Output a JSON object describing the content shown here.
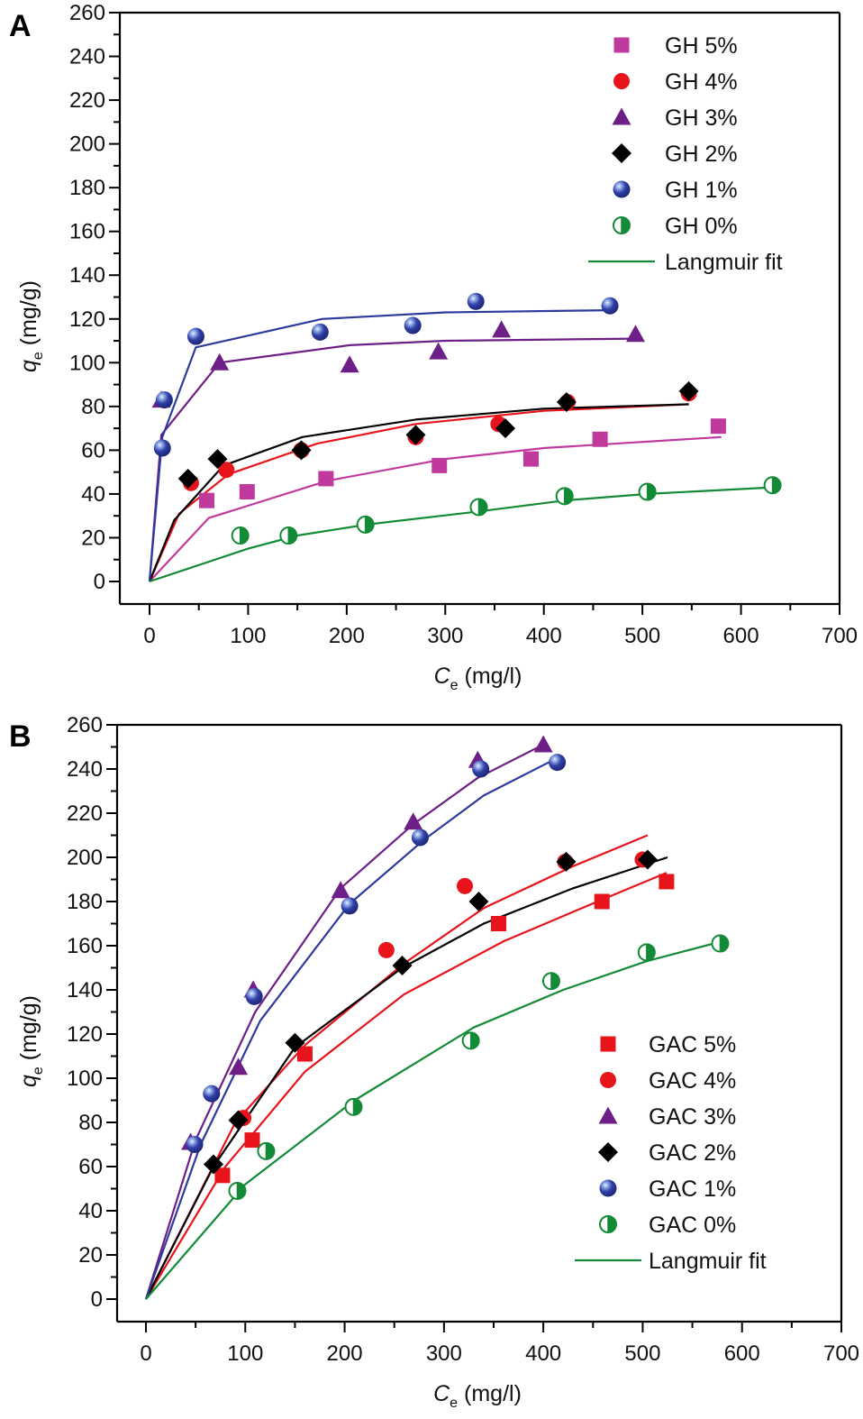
{
  "chart_data": [
    {
      "type": "scatter",
      "panel_label": "A",
      "title": "",
      "xlabel": "C",
      "xlabel_sub": "e",
      "xlabel_unit": " (mg/l)",
      "ylabel": "q",
      "ylabel_sub": "e",
      "ylabel_unit": " (mg/g)",
      "xlim": [
        -30,
        700
      ],
      "ylim": [
        -10,
        260
      ],
      "xticks": [
        0,
        100,
        200,
        300,
        400,
        500,
        600,
        700
      ],
      "yticks": [
        0,
        20,
        40,
        60,
        80,
        100,
        120,
        140,
        160,
        180,
        200,
        220,
        240,
        260
      ],
      "grid": false,
      "legend_position": "top-right",
      "fit_label": "Langmuir fit",
      "series": [
        {
          "name": "GH 5%",
          "marker": "square",
          "color": "#c03a9e",
          "x": [
            58,
            99,
            179,
            294,
            387,
            457,
            577
          ],
          "y": [
            37,
            41,
            47,
            53,
            56,
            65,
            71
          ],
          "fit_x": [
            0,
            60,
            180,
            300,
            400,
            580
          ],
          "fit_y": [
            0,
            29,
            46,
            56,
            61,
            66
          ]
        },
        {
          "name": "GH 4%",
          "marker": "circle",
          "color": "#e8141b",
          "x": [
            42,
            78,
            154,
            270,
            354,
            424,
            547
          ],
          "y": [
            45,
            51,
            60,
            66,
            72,
            82,
            86
          ],
          "fit_x": [
            0,
            30,
            80,
            170,
            270,
            400,
            547
          ],
          "fit_y": [
            0,
            31,
            49,
            63,
            72,
            78,
            81
          ]
        },
        {
          "name": "GH 3%",
          "marker": "triangle",
          "color": "#6e1f87",
          "x": [
            12,
            71,
            203,
            293,
            357,
            493
          ],
          "y": [
            83,
            100,
            99,
            105,
            115,
            113
          ],
          "fit_x": [
            0,
            12,
            71,
            203,
            300,
            493
          ],
          "fit_y": [
            0,
            67,
            100,
            108,
            110,
            111
          ]
        },
        {
          "name": "GH 2%",
          "marker": "diamond",
          "color": "#000000",
          "x": [
            39,
            69,
            154,
            270,
            361,
            423,
            547
          ],
          "y": [
            47,
            56,
            60,
            67,
            70,
            82,
            87
          ],
          "fit_x": [
            0,
            25,
            75,
            155,
            270,
            400,
            547
          ],
          "fit_y": [
            0,
            28,
            53,
            66,
            74,
            79,
            81
          ]
        },
        {
          "name": "GH 1%",
          "marker": "sphere",
          "color": "#2e3b9c",
          "x": [
            13,
            15,
            47,
            173,
            267,
            331,
            467
          ],
          "y": [
            61,
            83,
            112,
            114,
            117,
            128,
            126
          ],
          "fit_x": [
            0,
            13,
            47,
            175,
            300,
            467
          ],
          "fit_y": [
            0,
            66,
            107,
            120,
            123,
            124
          ]
        },
        {
          "name": "GH 0%",
          "marker": "half-circle",
          "color": "#138a36",
          "x": [
            92,
            141,
            219,
            334,
            421,
            505,
            632
          ],
          "y": [
            21,
            21,
            26,
            34,
            39,
            41,
            44
          ],
          "fit_x": [
            0,
            100,
            150,
            220,
            334,
            421,
            505,
            632
          ],
          "fit_y": [
            0,
            15,
            21,
            26,
            32,
            37,
            40,
            43
          ]
        }
      ]
    },
    {
      "type": "scatter",
      "panel_label": "B",
      "title": "",
      "xlabel": "C",
      "xlabel_sub": "e",
      "xlabel_unit": " (mg/l)",
      "ylabel": "q",
      "ylabel_sub": "e",
      "ylabel_unit": " (mg/g)",
      "xlim": [
        -30,
        700
      ],
      "ylim": [
        -10,
        260
      ],
      "xticks": [
        0,
        100,
        200,
        300,
        400,
        500,
        600,
        700
      ],
      "yticks": [
        0,
        20,
        40,
        60,
        80,
        100,
        120,
        140,
        160,
        180,
        200,
        220,
        240,
        260
      ],
      "grid": false,
      "legend_position": "bottom-right",
      "fit_label": "Langmuir fit",
      "series": [
        {
          "name": "GAC 5%",
          "marker": "square",
          "color": "#e8141b",
          "x": [
            77,
            107,
            160,
            355,
            459,
            524
          ],
          "y": [
            56,
            72,
            111,
            170,
            180,
            189
          ],
          "fit_x": [
            0,
            80,
            160,
            260,
            360,
            460,
            524
          ],
          "fit_y": [
            0,
            60,
            103,
            138,
            162,
            181,
            193
          ]
        },
        {
          "name": "GAC 4%",
          "marker": "circle",
          "color": "#e8141b",
          "x": [
            98,
            242,
            321,
            422,
            500
          ],
          "y": [
            82,
            158,
            187,
            198,
            199
          ],
          "fit_x": [
            0,
            90,
            160,
            260,
            340,
            430,
            505
          ],
          "fit_y": [
            0,
            80,
            115,
            152,
            177,
            196,
            210
          ]
        },
        {
          "name": "GAC 3%",
          "marker": "triangle",
          "color": "#6e1f87",
          "x": [
            45,
            93,
            108,
            196,
            269,
            334,
            400
          ],
          "y": [
            71,
            105,
            140,
            185,
            216,
            244,
            251
          ],
          "fit_x": [
            0,
            50,
            110,
            196,
            269,
            334,
            400
          ],
          "fit_y": [
            0,
            72,
            130,
            186,
            215,
            236,
            251
          ]
        },
        {
          "name": "GAC 2%",
          "marker": "diamond",
          "color": "#000000",
          "x": [
            68,
            93,
            150,
            258,
            335,
            423,
            505
          ],
          "y": [
            61,
            81,
            116,
            151,
            180,
            198,
            199
          ],
          "fit_x": [
            0,
            68,
            150,
            258,
            340,
            430,
            525
          ],
          "fit_y": [
            0,
            60,
            114,
            150,
            170,
            186,
            200
          ]
        },
        {
          "name": "GAC 1%",
          "marker": "sphere",
          "color": "#2e3b9c",
          "x": [
            49,
            66,
            109,
            205,
            276,
            337,
            414
          ],
          "y": [
            70,
            93,
            137,
            178,
            209,
            240,
            243
          ],
          "fit_x": [
            0,
            55,
            115,
            205,
            280,
            340,
            414
          ],
          "fit_y": [
            0,
            70,
            126,
            179,
            208,
            228,
            245
          ]
        },
        {
          "name": "GAC 0%",
          "marker": "half-circle",
          "color": "#138a36",
          "x": [
            92,
            121,
            209,
            327,
            408,
            504,
            578
          ],
          "y": [
            49,
            67,
            87,
            117,
            144,
            157,
            161
          ],
          "fit_x": [
            0,
            100,
            210,
            330,
            420,
            504,
            580
          ],
          "fit_y": [
            0,
            52,
            90,
            123,
            140,
            153,
            162
          ]
        }
      ]
    }
  ]
}
